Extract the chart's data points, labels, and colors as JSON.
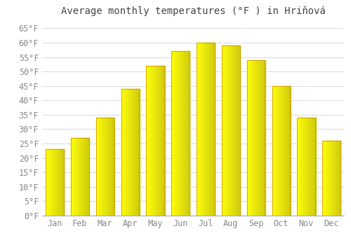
{
  "title": "Average monthly temperatures (°F ) in Hriňová",
  "months": [
    "Jan",
    "Feb",
    "Mar",
    "Apr",
    "May",
    "Jun",
    "Jul",
    "Aug",
    "Sep",
    "Oct",
    "Nov",
    "Dec"
  ],
  "values": [
    23,
    27,
    34,
    44,
    52,
    57,
    60,
    59,
    54,
    45,
    34,
    26
  ],
  "bar_color_left": "#FFD050",
  "bar_color_right": "#FFA000",
  "bar_edge_color": "#CC8800",
  "background_color": "#FFFFFF",
  "grid_color": "#DDDDDD",
  "ylim": [
    0,
    68
  ],
  "yticks": [
    0,
    5,
    10,
    15,
    20,
    25,
    30,
    35,
    40,
    45,
    50,
    55,
    60,
    65
  ],
  "tick_label_color": "#888888",
  "title_color": "#444444",
  "title_fontsize": 10,
  "tick_fontsize": 8.5,
  "font_family": "monospace"
}
